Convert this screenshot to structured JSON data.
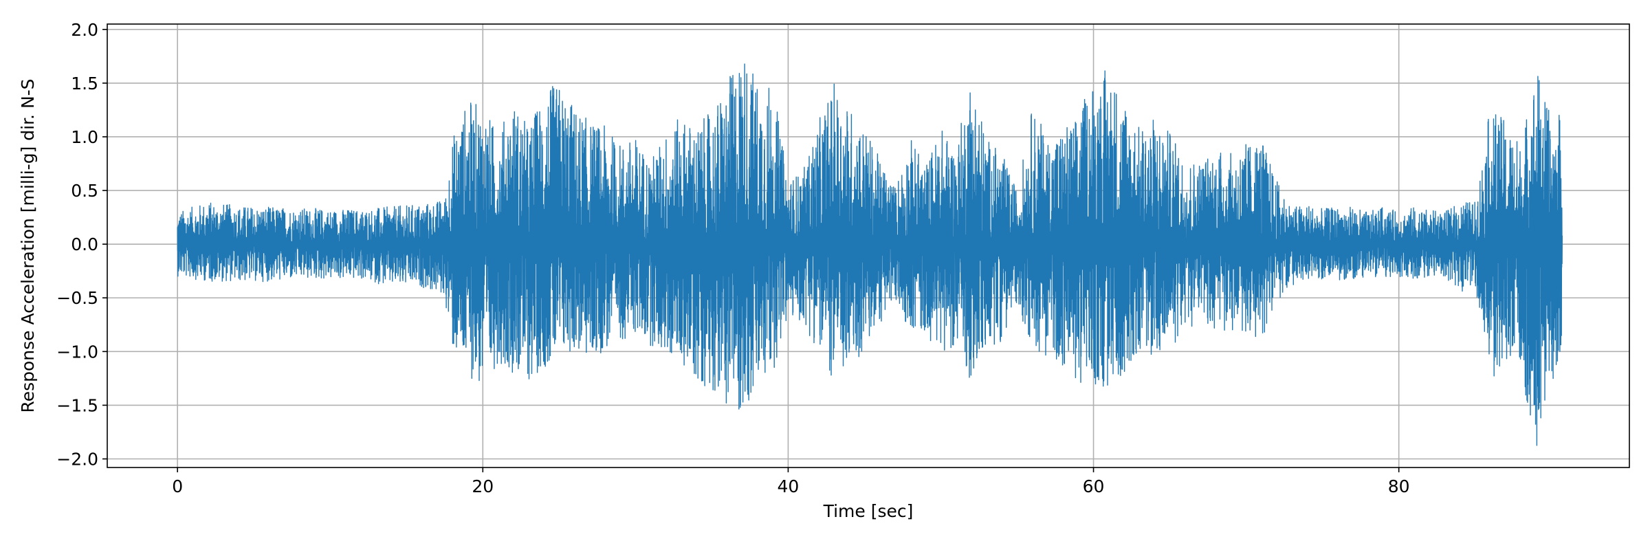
{
  "chart_data": {
    "type": "line",
    "title": "",
    "xlabel": "Time [sec]",
    "ylabel": "Response Acceleration [milli-g] dir. N-S",
    "xlim": [
      -4.6,
      95.1
    ],
    "ylim": [
      -2.08,
      2.05
    ],
    "xticks": [
      0,
      20,
      40,
      60,
      80
    ],
    "xtick_labels": [
      "0",
      "20",
      "40",
      "60",
      "80"
    ],
    "yticks": [
      -2.0,
      -1.5,
      -1.0,
      -0.5,
      0.0,
      0.5,
      1.0,
      1.5,
      2.0
    ],
    "ytick_labels": [
      "−2.0",
      "−1.5",
      "−1.0",
      "−0.5",
      "0.0",
      "0.5",
      "1.0",
      "1.5",
      "2.0"
    ],
    "grid": true,
    "line_color": "#1f77b4",
    "series": [
      {
        "x_start": 0.0,
        "x_end": 90.7,
        "envelope_time": [
          0,
          2,
          4,
          6,
          8,
          10,
          12,
          14,
          16,
          17.5,
          18,
          19,
          20,
          21,
          22,
          23,
          24,
          25,
          26,
          27,
          28,
          29,
          30,
          31,
          32,
          33,
          34,
          35,
          36,
          37,
          38,
          39,
          40,
          41,
          42,
          43,
          44,
          45,
          46,
          47,
          48,
          49,
          50,
          51,
          52,
          53,
          54,
          55,
          56,
          57,
          58,
          59,
          60,
          61,
          62,
          63,
          64,
          65,
          66,
          67,
          68,
          69,
          70,
          71,
          72,
          73,
          74,
          75,
          76,
          77,
          78,
          79,
          80,
          81,
          82,
          83,
          84,
          85,
          86,
          87,
          88,
          89,
          90,
          90.7
        ],
        "envelope_max": [
          0.3,
          0.4,
          0.36,
          0.35,
          0.34,
          0.33,
          0.33,
          0.35,
          0.38,
          0.42,
          1.0,
          1.35,
          1.3,
          1.05,
          1.35,
          1.1,
          1.45,
          1.5,
          1.3,
          1.15,
          1.1,
          0.95,
          1.0,
          0.8,
          1.05,
          1.2,
          1.1,
          1.25,
          1.5,
          1.85,
          1.55,
          1.5,
          0.6,
          0.7,
          1.15,
          1.5,
          1.3,
          1.1,
          0.8,
          0.55,
          1.0,
          0.75,
          1.1,
          0.9,
          1.63,
          1.0,
          0.85,
          0.5,
          1.3,
          1.0,
          1.1,
          1.2,
          1.6,
          1.65,
          1.4,
          1.1,
          1.2,
          1.05,
          0.8,
          0.8,
          0.9,
          0.85,
          0.95,
          1.0,
          0.6,
          0.35,
          0.38,
          0.33,
          0.35,
          0.35,
          0.3,
          0.35,
          0.3,
          0.35,
          0.32,
          0.3,
          0.4,
          0.4,
          1.3,
          1.15,
          0.95,
          1.7,
          1.15,
          1.25
        ],
        "envelope_min": [
          -0.3,
          -0.35,
          -0.35,
          -0.35,
          -0.33,
          -0.33,
          -0.33,
          -0.4,
          -0.4,
          -0.5,
          -1.0,
          -1.2,
          -1.4,
          -1.1,
          -1.2,
          -1.3,
          -1.15,
          -1.1,
          -1.0,
          -1.1,
          -1.0,
          -0.9,
          -0.85,
          -0.95,
          -1.05,
          -1.1,
          -1.3,
          -1.35,
          -1.5,
          -1.6,
          -1.4,
          -1.2,
          -0.7,
          -0.75,
          -1.0,
          -1.3,
          -1.2,
          -1.0,
          -0.75,
          -0.55,
          -0.8,
          -0.85,
          -1.0,
          -0.95,
          -1.3,
          -1.0,
          -0.9,
          -0.55,
          -1.0,
          -1.05,
          -1.15,
          -1.3,
          -1.35,
          -1.4,
          -1.2,
          -1.0,
          -1.05,
          -1.0,
          -0.8,
          -0.75,
          -0.8,
          -0.85,
          -0.85,
          -0.9,
          -0.55,
          -0.38,
          -0.35,
          -0.33,
          -0.34,
          -0.33,
          -0.3,
          -0.33,
          -0.3,
          -0.33,
          -0.3,
          -0.3,
          -0.45,
          -0.4,
          -1.3,
          -1.1,
          -1.2,
          -1.9,
          -1.3,
          -1.1
        ]
      }
    ]
  }
}
